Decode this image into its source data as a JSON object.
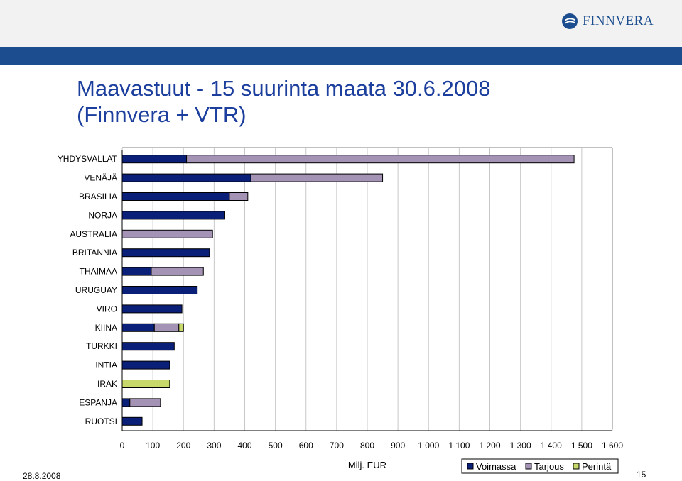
{
  "header": {
    "logo_text": "FINNVERA",
    "brand_color": "#1c4e8f"
  },
  "slide": {
    "title_line1": "Maavastuut - 15 suurinta maata 30.6.2008",
    "title_line2": "(Finnvera + VTR)"
  },
  "footer": {
    "date": "28.8.2008",
    "page_number": "15"
  },
  "chart_data": {
    "type": "bar",
    "orientation": "horizontal",
    "stacked": true,
    "categories": [
      "YHDYSVALLAT",
      "VENÄJÄ",
      "BRASILIA",
      "NORJA",
      "AUSTRALIA",
      "BRITANNIA",
      "THAIMAA",
      "URUGUAY",
      "VIRO",
      "KIINA",
      "TURKKI",
      "INTIA",
      "IRAK",
      "ESPANJA",
      "RUOTSI"
    ],
    "series": [
      {
        "name": "Voimassa",
        "color": "#0a1f78",
        "values": [
          210,
          420,
          350,
          335,
          0,
          285,
          95,
          245,
          195,
          105,
          170,
          155,
          0,
          25,
          65
        ]
      },
      {
        "name": "Tarjous",
        "color": "#a493b4",
        "values": [
          1265,
          430,
          60,
          0,
          295,
          0,
          170,
          0,
          0,
          80,
          0,
          0,
          0,
          100,
          0
        ]
      },
      {
        "name": "Perintä",
        "color": "#c8d86a",
        "values": [
          0,
          0,
          0,
          0,
          0,
          0,
          0,
          0,
          0,
          15,
          0,
          0,
          155,
          0,
          0
        ]
      }
    ],
    "xlabel": "Milj. EUR",
    "xlim": [
      0,
      1600
    ],
    "xticks": [
      0,
      100,
      200,
      300,
      400,
      500,
      600,
      700,
      800,
      900,
      1000,
      1100,
      1200,
      1300,
      1400,
      1500,
      1600
    ],
    "xtick_labels": [
      "0",
      "100",
      "200",
      "300",
      "400",
      "500",
      "600",
      "700",
      "800",
      "900",
      "1 000",
      "1 100",
      "1 200",
      "1 300",
      "1 400",
      "1 500",
      "1 600"
    ],
    "grid": "vertical",
    "legend_position": "bottom-right"
  }
}
